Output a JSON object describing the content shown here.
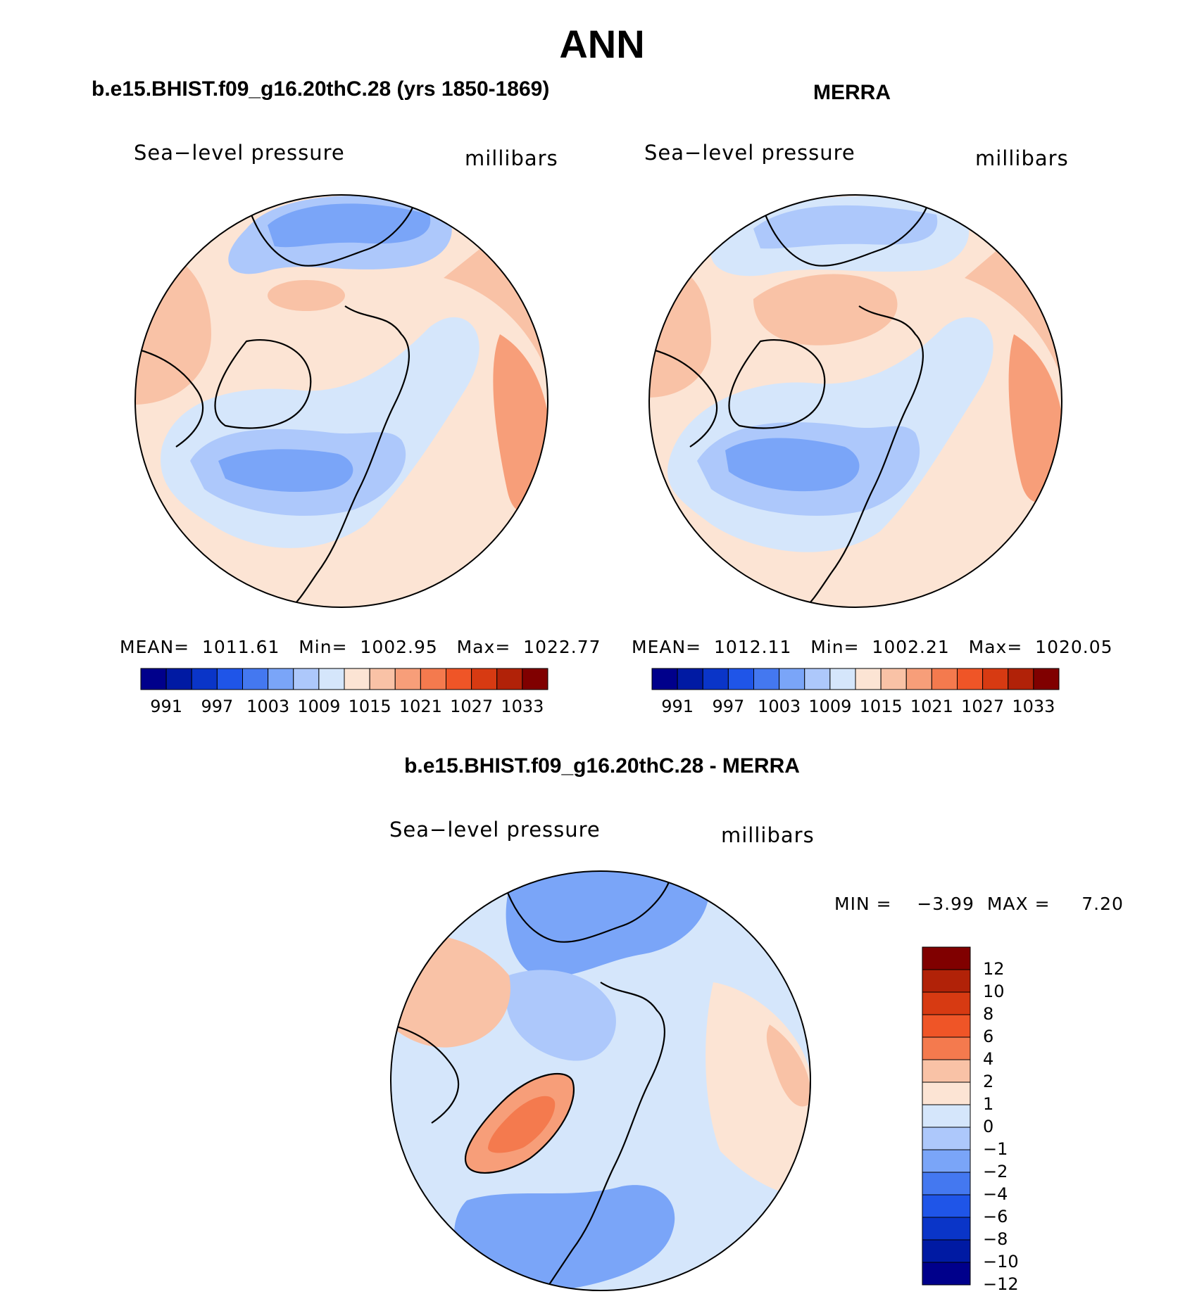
{
  "figure": {
    "title": "ANN"
  },
  "panels": {
    "model": {
      "title": "b.e15.BHIST.f09_g16.20thC.28 (yrs 1850-1869)",
      "variable": "Sea−level pressure",
      "units": "millibars",
      "stats": "MEAN=  1011.61   Min=  1002.95   Max=  1022.77"
    },
    "obs": {
      "title": "MERRA",
      "variable": "Sea−level pressure",
      "units": "millibars",
      "stats": "MEAN=  1012.11   Min=  1002.21   Max=  1020.05"
    },
    "diff": {
      "title": "b.e15.BHIST.f09_g16.20thC.28 - MERRA",
      "variable": "Sea−level pressure",
      "units": "millibars",
      "stats": "MIN =    −3.99  MAX =     7.20"
    }
  },
  "colorbars": {
    "slp": {
      "colors": [
        "#00008b",
        "#001aa3",
        "#0a35c8",
        "#1f55e8",
        "#4478f0",
        "#7aa5f8",
        "#adc8fb",
        "#d5e6fb",
        "#fce4d4",
        "#f9c2a6",
        "#f79e79",
        "#f47a4e",
        "#ef5527",
        "#d73a12",
        "#b12208",
        "#800000"
      ],
      "labels": [
        "991",
        "997",
        "1003",
        "1009",
        "1015",
        "1021",
        "1027",
        "1033"
      ]
    },
    "diff": {
      "colors": [
        "#800000",
        "#b12208",
        "#d73a12",
        "#ef5527",
        "#f47a4e",
        "#f9c2a6",
        "#fce4d4",
        "#d5e6fb",
        "#adc8fb",
        "#7aa5f8",
        "#4478f0",
        "#1f55e8",
        "#0a35c8",
        "#001aa3",
        "#00008b"
      ],
      "labels": [
        "12",
        "10",
        "8",
        "6",
        "4",
        "2",
        "1",
        "0",
        "−1",
        "−2",
        "−4",
        "−6",
        "−8",
        "−10",
        "−12"
      ]
    }
  }
}
